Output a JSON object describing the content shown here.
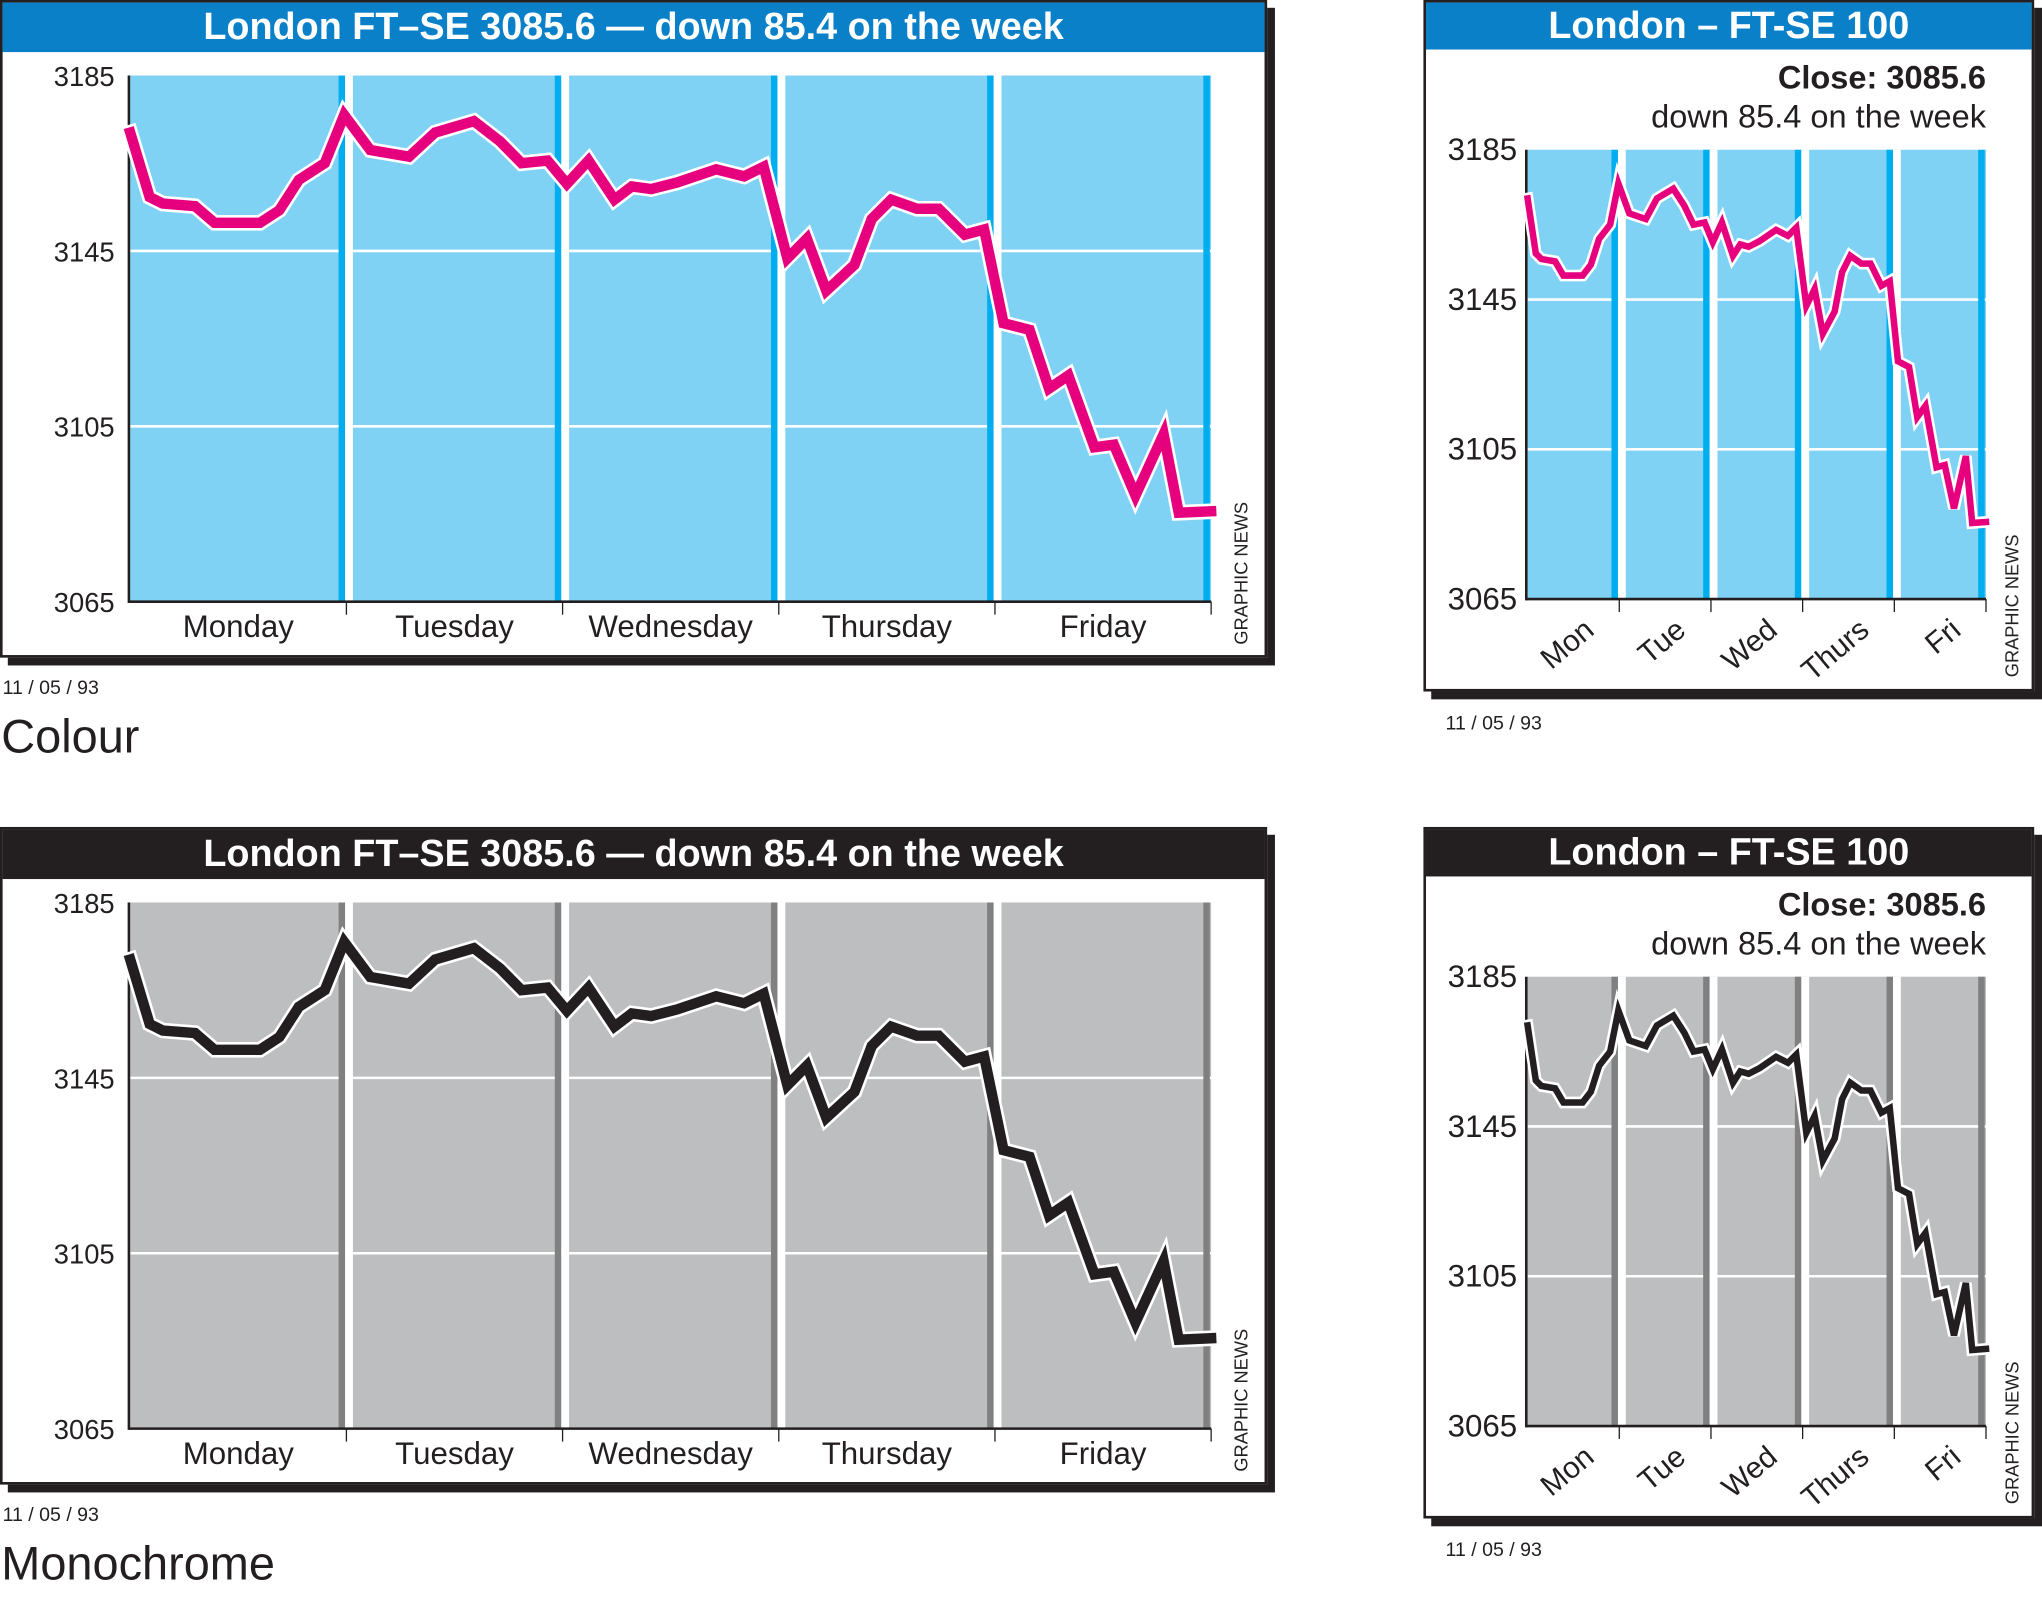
{
  "large": {
    "title": "London FT–SE 3085.6 — down 85.4 on the week",
    "credit": "GRAPHIC NEWS",
    "date": "11 / 05 / 93"
  },
  "small": {
    "title": "London – FT-SE 100",
    "close": "Close: 3085.6",
    "change": "down 85.4 on the week",
    "credit": "GRAPHIC NEWS",
    "date": "11 / 05 / 93"
  },
  "section_labels": {
    "colour": "Colour",
    "monochrome": "Monochrome"
  },
  "colors": {
    "colour_title": "#0a80c8",
    "colour_plot": "#80d2f5",
    "colour_stripe": "#00aeef",
    "colour_line": "#e6007e",
    "mono_title": "#231f20",
    "mono_plot": "#bdbec0",
    "mono_stripe": "#808080",
    "mono_line": "#231f20"
  },
  "chart_data": {
    "type": "line",
    "title": "London FT–SE 3085.6 — down 85.4 on the week",
    "xlabel": "",
    "ylabel": "",
    "ylim": [
      3065,
      3185
    ],
    "yticks": [
      "3185",
      "3145",
      "3105",
      "3065"
    ],
    "ytick_values": [
      3185,
      3145,
      3105,
      3065
    ],
    "grid": true,
    "days_long": [
      "Monday",
      "Tuesday",
      "Wednesday",
      "Thursday",
      "Friday"
    ],
    "days_short": [
      "Mon",
      "Tue",
      "Wed",
      "Thurs",
      "Fri"
    ],
    "series": [
      {
        "name": "FT-SE 100",
        "x": [
          0,
          0.09,
          0.15,
          0.3,
          0.39,
          0.6,
          0.69,
          0.78,
          0.9,
          0.99,
          1.11,
          1.29,
          1.41,
          1.59,
          1.71,
          1.81,
          1.93,
          2.02,
          2.12,
          2.24,
          2.32,
          2.41,
          2.53,
          2.71,
          2.84,
          2.93,
          3.04,
          3.13,
          3.22,
          3.35,
          3.43,
          3.52,
          3.64,
          3.74,
          3.86,
          3.95,
          4.04,
          4.16,
          4.25,
          4.34,
          4.46,
          4.55,
          4.65,
          4.78,
          4.85,
          5.0
        ],
        "y": [
          3172,
          3157.3,
          3155.8,
          3155.2,
          3151.4,
          3151.4,
          3154.3,
          3161.2,
          3165,
          3176,
          3168,
          3166.5,
          3172,
          3174.6,
          3170,
          3165,
          3165.6,
          3160.3,
          3165.6,
          3156.7,
          3159.7,
          3159.1,
          3160.6,
          3163.6,
          3162,
          3164.2,
          3143.3,
          3147.8,
          3135.9,
          3141.8,
          3152.3,
          3156.7,
          3154.6,
          3154.6,
          3148.7,
          3149.9,
          3128.5,
          3127,
          3113.6,
          3116.6,
          3100.2,
          3100.8,
          3089.2,
          3103.2,
          3085.3,
          3085.6
        ]
      }
    ]
  }
}
